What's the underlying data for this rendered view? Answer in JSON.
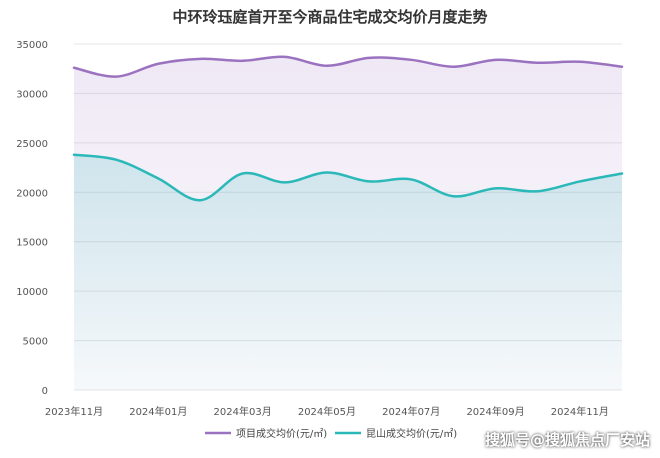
{
  "chart_data": {
    "type": "line",
    "title": "中环玲珏庭首开至今商品住宅成交均价月度走势",
    "x": [
      "2023-11",
      "2023-12",
      "2024-01",
      "2024-02",
      "2024-03",
      "2024-04",
      "2024-05",
      "2024-06",
      "2024-07",
      "2024-08",
      "2024-09",
      "2024-10",
      "2024-11",
      "2024-12"
    ],
    "x_tick_labels": [
      "2023年11月",
      "2024年01月",
      "2024年03月",
      "2024年05月",
      "2024年07月",
      "2024年09月",
      "2024年11月"
    ],
    "series": [
      {
        "name": "项目成交均价(元/㎡)",
        "color": "#9b72c0",
        "values": [
          32600,
          31700,
          33000,
          33500,
          33300,
          33700,
          32800,
          33600,
          33400,
          32700,
          33400,
          33100,
          33200,
          32700
        ]
      },
      {
        "name": "昆山成交均价(元/㎡)",
        "color": "#2bb8b8",
        "values": [
          23800,
          23300,
          21400,
          19200,
          21900,
          21000,
          22000,
          21100,
          21300,
          19600,
          20400,
          20100,
          21100,
          21900
        ]
      }
    ],
    "ylim": [
      0,
      35000
    ],
    "yticks": [
      0,
      5000,
      10000,
      15000,
      20000,
      25000,
      30000,
      35000
    ],
    "grid": true,
    "legend": "bottom"
  },
  "watermark": "搜狐号@搜狐焦点厂安站"
}
